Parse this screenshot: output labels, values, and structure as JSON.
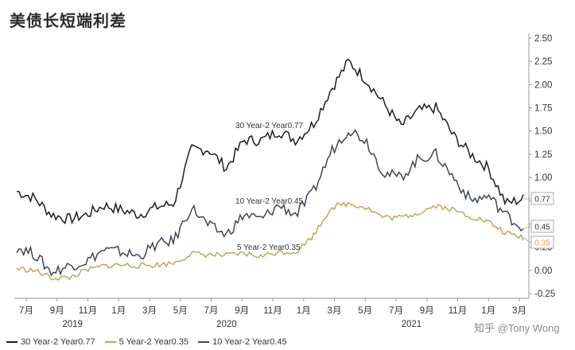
{
  "title": "美债长短端利差",
  "watermark": "知乎 @Tony Wong",
  "chart_data": {
    "type": "line",
    "y_ticks": [
      "2.50",
      "2.25",
      "2.00",
      "1.75",
      "1.50",
      "1.25",
      "1.00",
      "0.75",
      "0.50",
      "0.25",
      "0.00",
      "-0.25"
    ],
    "ylim": [
      -0.3,
      2.55
    ],
    "x_ticks": [
      "7月",
      "9月",
      "11月",
      "1月",
      "3月",
      "5月",
      "7月",
      "9月",
      "11月",
      "1月",
      "3月",
      "5月",
      "7月",
      "9月",
      "11月",
      "1月",
      "3月"
    ],
    "years": [
      "2019",
      "2020",
      "2021"
    ],
    "series": [
      {
        "name": "30 Year-2 Year0.77",
        "label": "30 Year-2 Year0.77",
        "color": "#1e1e1e",
        "last": "0.77",
        "values": [
          0.85,
          0.78,
          0.6,
          0.55,
          0.6,
          0.7,
          0.65,
          0.6,
          0.68,
          0.72,
          1.3,
          1.3,
          1.1,
          1.4,
          1.4,
          1.5,
          1.4,
          1.58,
          1.95,
          2.25,
          2.05,
          1.8,
          1.55,
          1.72,
          1.75,
          1.45,
          1.25,
          1.1,
          0.72,
          0.77
        ]
      },
      {
        "name": "10 Year-2 Year0.45",
        "label": "10 Year-2 Year0.45",
        "color": "#3f4657",
        "last": "0.45",
        "values": [
          0.25,
          0.18,
          -0.02,
          0.05,
          0.1,
          0.22,
          0.2,
          0.15,
          0.28,
          0.32,
          0.68,
          0.48,
          0.38,
          0.6,
          0.55,
          0.7,
          0.6,
          0.85,
          1.28,
          1.52,
          1.4,
          1.05,
          1.0,
          1.2,
          1.25,
          1.0,
          0.75,
          0.8,
          0.6,
          0.45
        ]
      },
      {
        "name": "5 Year-2 Year0.35",
        "label": "5 Year-2 Year0.35",
        "color": "#c9a15d",
        "last": "0.35",
        "values": [
          0.02,
          0.0,
          -0.08,
          -0.08,
          0.0,
          0.05,
          0.06,
          0.05,
          0.06,
          0.08,
          0.18,
          0.17,
          0.16,
          0.18,
          0.15,
          0.2,
          0.2,
          0.38,
          0.68,
          0.72,
          0.68,
          0.57,
          0.57,
          0.62,
          0.7,
          0.65,
          0.58,
          0.52,
          0.4,
          0.35
        ]
      }
    ],
    "legend": "bottom",
    "legend_items": [
      "30 Year-2 Year0.77",
      "5 Year-2 Year0.35",
      "10 Year-2 Year0.45"
    ]
  }
}
